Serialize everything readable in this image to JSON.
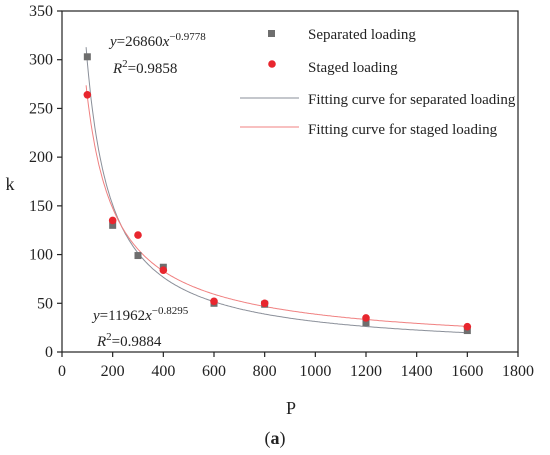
{
  "chart_data": {
    "type": "scatter",
    "xlabel": "P",
    "ylabel": "k",
    "xlim": [
      0,
      1800
    ],
    "ylim": [
      0,
      350
    ],
    "xticks": [
      0,
      200,
      400,
      600,
      800,
      1000,
      1200,
      1400,
      1600,
      1800
    ],
    "yticks": [
      0,
      50,
      100,
      150,
      200,
      250,
      300,
      350
    ],
    "grid": false,
    "legend_position": "top-right",
    "series": [
      {
        "name": "Separated loading",
        "kind": "scatter",
        "marker": "square",
        "color": "#6e6e6e",
        "x": [
          100,
          200,
          300,
          400,
          600,
          800,
          1200,
          1600
        ],
        "y": [
          303,
          130,
          99,
          87,
          50,
          49,
          30,
          22
        ]
      },
      {
        "name": "Staged loading",
        "kind": "scatter",
        "marker": "circle",
        "color": "#e8262e",
        "x": [
          100,
          200,
          300,
          400,
          600,
          800,
          1200,
          1600
        ],
        "y": [
          264,
          135,
          120,
          84,
          52,
          50,
          35,
          26
        ]
      },
      {
        "name": "Fitting curve for separated loading",
        "kind": "line",
        "color": "#8a8f99",
        "formula": {
          "a": 26860,
          "b": -0.9778
        }
      },
      {
        "name": "Fitting curve for staged  loading",
        "kind": "line",
        "color": "#f08080",
        "formula": {
          "a": 11962,
          "b": -0.8295
        }
      }
    ],
    "annotations": [
      {
        "id": "eq1",
        "y_eq": "y",
        "coef": "=26860",
        "var": "x",
        "exp": "−0.9778",
        "r": "R",
        "r_exp": "2",
        "r_val": "=0.9858"
      },
      {
        "id": "eq2",
        "y_eq": "y",
        "coef": "=11962",
        "var": "x",
        "exp": "−0.8295",
        "r": "R",
        "r_exp": "2",
        "r_val": "=0.9884"
      }
    ]
  },
  "caption": {
    "open": "(",
    "letter": "a",
    "close": ")"
  }
}
